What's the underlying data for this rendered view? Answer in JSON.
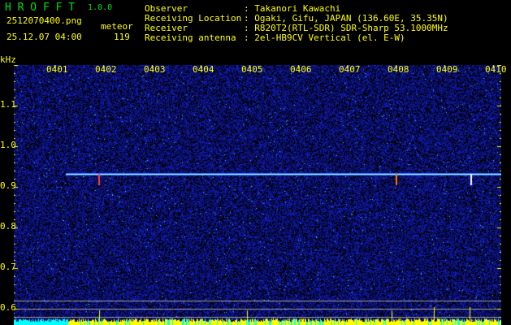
{
  "app": {
    "title": "H R O F F T",
    "version": "1.0.0"
  },
  "file": {
    "name": "2512070400.png",
    "datetime": "25.12.07 04:00"
  },
  "meteor": {
    "label": "meteor",
    "count": "119"
  },
  "info": [
    {
      "label": "Observer",
      "value": ": Takanori Kawachi"
    },
    {
      "label": "Receiving Location",
      "value": ": Ogaki, Gifu, JAPAN (136.60E, 35.35N)"
    },
    {
      "label": "Receiver",
      "value": ": R820T2(RTL-SDR) SDR-Sharp 53.1000MHz"
    },
    {
      "label": "Receiving antenna",
      "value": ": 2el-HB9CV Vertical (el. E-W)"
    }
  ],
  "axis": {
    "y_unit": "kHz",
    "y_ticks": [
      "1.1",
      "1.0",
      "0.9",
      "0.8",
      "0.7",
      "0.6"
    ],
    "x_ticks": [
      "0401",
      "0402",
      "0403",
      "0404",
      "0405",
      "0406",
      "0407",
      "0408",
      "0409",
      "0410"
    ]
  },
  "colors": {
    "text": "#ffff00",
    "title": "#00e000",
    "background": "#000000",
    "noise": "#1020c0",
    "signal": "#a0ffff",
    "histogram_high": "#ffff00",
    "histogram_low": "#00ffff"
  }
}
